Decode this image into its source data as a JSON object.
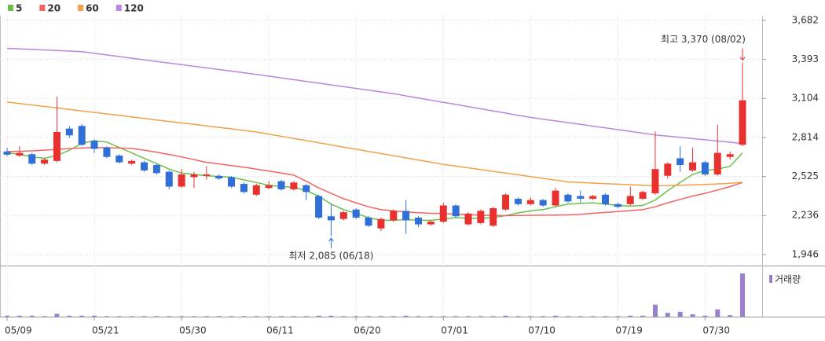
{
  "chart_data": {
    "type": "candlestick",
    "categories": [
      "05/09",
      null,
      null,
      null,
      null,
      null,
      null,
      "05/21",
      null,
      null,
      null,
      null,
      null,
      null,
      "05/30",
      null,
      null,
      null,
      null,
      null,
      null,
      "06/11",
      null,
      null,
      null,
      null,
      null,
      null,
      "06/20",
      null,
      null,
      null,
      null,
      null,
      null,
      "07/01",
      null,
      null,
      null,
      null,
      null,
      null,
      "07/10",
      null,
      null,
      null,
      null,
      null,
      null,
      "07/19",
      null,
      null,
      null,
      null,
      null,
      null,
      "07/30",
      null,
      null,
      null
    ],
    "ohlc": {
      "open": [
        2710,
        2680,
        2690,
        2620,
        2640,
        2880,
        2900,
        2790,
        2740,
        2680,
        2620,
        2630,
        2610,
        2560,
        2450,
        2520,
        2530,
        2530,
        2520,
        2470,
        2390,
        2440,
        2490,
        2430,
        2460,
        2380,
        2230,
        2210,
        2280,
        2220,
        2140,
        2200,
        2270,
        2220,
        2170,
        2190,
        2310,
        2170,
        2180,
        2160,
        2280,
        2360,
        2320,
        2350,
        2310,
        2390,
        2380,
        2360,
        2390,
        2320,
        2320,
        2360,
        2400,
        2530,
        2660,
        2570,
        2630,
        2540,
        2670,
        2760
      ],
      "high": [
        2739,
        2750,
        2700,
        2660,
        3118,
        2900,
        2915,
        2800,
        2750,
        2690,
        2650,
        2640,
        2620,
        2570,
        2580,
        2560,
        2600,
        2540,
        2530,
        2480,
        2470,
        2490,
        2500,
        2490,
        2470,
        2390,
        2320,
        2270,
        2290,
        2230,
        2220,
        2280,
        2350,
        2230,
        2200,
        2330,
        2320,
        2260,
        2280,
        2300,
        2400,
        2370,
        2370,
        2360,
        2440,
        2400,
        2420,
        2390,
        2400,
        2330,
        2450,
        2420,
        2860,
        2630,
        2750,
        2740,
        2640,
        2910,
        2710,
        3370
      ],
      "low": [
        2675,
        2670,
        2610,
        2610,
        2630,
        2810,
        2750,
        2700,
        2660,
        2620,
        2610,
        2560,
        2540,
        2430,
        2440,
        2440,
        2500,
        2500,
        2440,
        2400,
        2380,
        2430,
        2420,
        2420,
        2350,
        2210,
        2085,
        2200,
        2210,
        2150,
        2120,
        2190,
        2100,
        2150,
        2160,
        2180,
        2220,
        2160,
        2170,
        2150,
        2270,
        2310,
        2310,
        2300,
        2300,
        2330,
        2330,
        2350,
        2310,
        2290,
        2310,
        2350,
        2390,
        2510,
        2560,
        2560,
        2530,
        2530,
        2650,
        2750
      ],
      "close": [
        2687,
        2700,
        2620,
        2650,
        2855,
        2830,
        2760,
        2730,
        2670,
        2630,
        2640,
        2570,
        2550,
        2450,
        2540,
        2540,
        2540,
        2510,
        2450,
        2410,
        2460,
        2460,
        2430,
        2480,
        2410,
        2220,
        2200,
        2260,
        2220,
        2160,
        2210,
        2270,
        2200,
        2170,
        2190,
        2310,
        2230,
        2250,
        2270,
        2290,
        2390,
        2320,
        2350,
        2310,
        2420,
        2340,
        2360,
        2380,
        2320,
        2300,
        2380,
        2410,
        2580,
        2620,
        2610,
        2630,
        2540,
        2700,
        2690,
        3090
      ]
    },
    "up_color": "#e8312f",
    "down_color": "#2f6fd6",
    "series": [
      {
        "name": "5",
        "color": "#6cc04a",
        "values": [
          2700,
          2690,
          2670,
          2660,
          2680,
          2720,
          2770,
          2790,
          2780,
          2740,
          2700,
          2660,
          2620,
          2580,
          2550,
          2540,
          2530,
          2525,
          2520,
          2500,
          2480,
          2460,
          2450,
          2445,
          2420,
          2380,
          2320,
          2280,
          2250,
          2220,
          2200,
          2200,
          2205,
          2200,
          2200,
          2210,
          2220,
          2215,
          2215,
          2220,
          2235,
          2255,
          2270,
          2280,
          2300,
          2320,
          2325,
          2330,
          2320,
          2310,
          2305,
          2310,
          2350,
          2420,
          2480,
          2540,
          2570,
          2580,
          2600,
          2700
        ]
      },
      {
        "name": "20",
        "color": "#f26464",
        "values": [
          2710,
          2712,
          2715,
          2720,
          2726,
          2732,
          2737,
          2740,
          2738,
          2736,
          2733,
          2720,
          2705,
          2688,
          2670,
          2650,
          2630,
          2618,
          2606,
          2594,
          2580,
          2565,
          2550,
          2535,
          2490,
          2440,
          2400,
          2360,
          2330,
          2300,
          2280,
          2270,
          2262,
          2256,
          2252,
          2250,
          2246,
          2242,
          2238,
          2236,
          2235,
          2236,
          2237,
          2238,
          2239,
          2240,
          2245,
          2252,
          2258,
          2265,
          2272,
          2280,
          2300,
          2330,
          2355,
          2380,
          2400,
          2425,
          2450,
          2480
        ]
      },
      {
        "name": "60",
        "color": "#f5a04a",
        "values": [
          3077,
          3066,
          3055,
          3044,
          3033,
          3022,
          3011,
          3000,
          2989,
          2978,
          2966,
          2955,
          2944,
          2933,
          2922,
          2911,
          2900,
          2889,
          2878,
          2866,
          2855,
          2839,
          2823,
          2807,
          2791,
          2775,
          2759,
          2743,
          2727,
          2711,
          2695,
          2679,
          2663,
          2647,
          2631,
          2615,
          2602,
          2589,
          2576,
          2563,
          2550,
          2537,
          2524,
          2511,
          2498,
          2485,
          2480,
          2476,
          2472,
          2468,
          2464,
          2460,
          2456,
          2458,
          2460,
          2463,
          2466,
          2470,
          2475,
          2482
        ]
      },
      {
        "name": "120",
        "color": "#b987e0",
        "values": [
          3475,
          3471,
          3467,
          3463,
          3459,
          3455,
          3450,
          3438,
          3426,
          3414,
          3402,
          3390,
          3378,
          3366,
          3354,
          3342,
          3330,
          3318,
          3306,
          3294,
          3282,
          3269,
          3256,
          3243,
          3230,
          3217,
          3204,
          3191,
          3178,
          3165,
          3152,
          3139,
          3123,
          3107,
          3091,
          3075,
          3059,
          3043,
          3027,
          3011,
          2995,
          2979,
          2963,
          2950,
          2937,
          2924,
          2911,
          2898,
          2885,
          2872,
          2859,
          2846,
          2833,
          2824,
          2815,
          2806,
          2797,
          2788,
          2779,
          2770
        ]
      }
    ],
    "volume": {
      "name": "거래량",
      "color": "#9b7fd0",
      "ylim": [
        0,
        95
      ],
      "values": [
        2,
        2,
        2,
        1,
        6,
        2,
        2,
        2,
        1,
        1,
        1,
        1,
        1,
        1,
        1,
        1,
        1,
        1,
        1,
        1,
        1,
        1,
        1,
        1,
        1,
        2,
        2,
        1,
        1,
        1,
        1,
        1,
        2,
        1,
        1,
        1,
        1,
        1,
        1,
        1,
        2,
        1,
        1,
        1,
        2,
        1,
        1,
        1,
        1,
        1,
        2,
        2,
        25,
        8,
        10,
        5,
        2,
        15,
        3,
        90
      ]
    },
    "high_label": "최고 3,370 (08/02)",
    "low_label": "최저 2,085 (06/18)",
    "ylim": [
      1946,
      3682
    ],
    "yticks": [
      {
        "value": 1946,
        "label": "1,946"
      },
      {
        "value": 2236,
        "label": "2,236"
      },
      {
        "value": 2525,
        "label": "2,525"
      },
      {
        "value": 2814,
        "label": "2,814"
      },
      {
        "value": 3104,
        "label": "3,104"
      },
      {
        "value": 3393,
        "label": "3,393"
      },
      {
        "value": 3682,
        "label": "3,682"
      }
    ],
    "grid": true
  }
}
